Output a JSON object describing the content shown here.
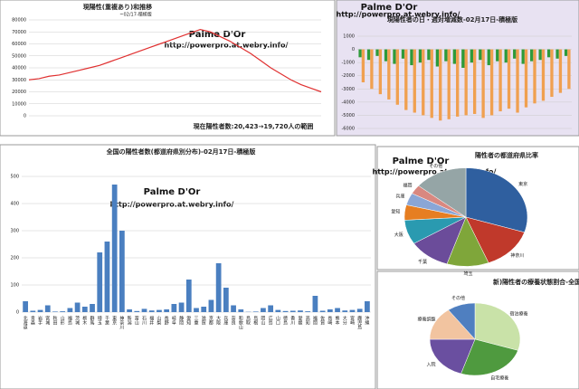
{
  "chart_data": [
    {
      "type": "line",
      "title": "現陽性(重複あり)和推移",
      "subtitle": "~02/17-積極版",
      "annotations": [
        "Palme D'Or",
        "http://powerpro.at.webry.info/",
        "現在陽性者数:20,423→19,720人の範囲"
      ],
      "color": "#e03030",
      "values": [
        30000,
        31000,
        33000,
        34000,
        36000,
        38000,
        40000,
        42000,
        45000,
        48000,
        51000,
        54000,
        57000,
        60000,
        63000,
        66000,
        69000,
        72000,
        70000,
        66000,
        62000,
        57000,
        52000,
        46000,
        40000,
        35000,
        30000,
        26000,
        23000,
        20000
      ],
      "ylim": [
        0,
        80000
      ],
      "yticks": [
        0,
        10000,
        20000,
        30000,
        40000,
        50000,
        60000,
        70000,
        80000
      ],
      "grid": true
    },
    {
      "type": "bar",
      "title": "現陽性者の日・週対増減数-02月17日-積極版",
      "annotations": [
        "Palme D'Or",
        "http://powerpro.at.webry.info/"
      ],
      "series": [
        {
          "color": "#2e9a3a",
          "values": [
            -600,
            -800,
            -500,
            -900,
            -1100,
            -700,
            -1200,
            -1000,
            -800,
            -1300,
            -900,
            -1100,
            -1400,
            -1000,
            -800,
            -1200,
            -900,
            -1000,
            -700,
            -1100,
            -900,
            -800,
            -600,
            -700,
            -500
          ]
        },
        {
          "color": "#f0a050",
          "values": [
            -2500,
            -3000,
            -3400,
            -3800,
            -4200,
            -4600,
            -4800,
            -5000,
            -5200,
            -5400,
            -5300,
            -5100,
            -5000,
            -4900,
            -5200,
            -5000,
            -4700,
            -4500,
            -4800,
            -4400,
            -4100,
            -3900,
            -3600,
            -3300,
            -3000
          ]
        }
      ],
      "ylim": [
        -6000,
        1000
      ],
      "yticks": [
        -6000,
        -5000,
        -4000,
        -3000,
        -2000,
        -1000,
        0,
        1000
      ],
      "grid": true,
      "background": "#e8e2f2"
    },
    {
      "type": "bar",
      "title": "全国の陽性者数(都道府県別分布)-02月17日-積極版",
      "annotations": [
        "Palme D'Or",
        "http://powerpro.at.webry.info/"
      ],
      "categories": [
        "北海道",
        "青森",
        "岩手",
        "宮城",
        "秋田",
        "山形",
        "福島",
        "茨城",
        "栃木",
        "群馬",
        "埼玉",
        "千葉",
        "東京",
        "神奈川",
        "新潟",
        "富山",
        "石川",
        "福井",
        "山梨",
        "長野",
        "岐阜",
        "静岡",
        "愛知",
        "三重",
        "滋賀",
        "京都",
        "大阪",
        "兵庫",
        "奈良",
        "和歌山",
        "鳥取",
        "島根",
        "岡山",
        "広島",
        "山口",
        "徳島",
        "香川",
        "愛媛",
        "高知",
        "福岡",
        "佐賀",
        "長崎",
        "熊本",
        "大分",
        "宮崎",
        "鹿児島",
        "沖縄"
      ],
      "color": "#4a7fc0",
      "values": [
        40,
        5,
        8,
        25,
        2,
        3,
        15,
        35,
        20,
        30,
        220,
        260,
        470,
        300,
        10,
        4,
        12,
        6,
        8,
        10,
        30,
        35,
        120,
        15,
        20,
        45,
        180,
        90,
        25,
        10,
        1,
        2,
        15,
        25,
        8,
        4,
        5,
        6,
        3,
        60,
        5,
        10,
        15,
        6,
        8,
        12,
        40
      ],
      "ylim": [
        0,
        500
      ],
      "yticks": [
        0,
        100,
        200,
        300,
        400,
        500
      ],
      "grid": true
    },
    {
      "type": "pie",
      "title": "陽性者の都道府県比率",
      "annotations": [
        "Palme D'Or",
        "http://powerpro.at.webry.info/"
      ],
      "categories": [
        "東京",
        "神奈川",
        "埼玉",
        "千葉",
        "大阪",
        "愛知",
        "兵庫",
        "福岡",
        "その他"
      ],
      "values": [
        30,
        14,
        11,
        11,
        8,
        5,
        4,
        3,
        14
      ],
      "colors": [
        "#2f5f9f",
        "#c0392b",
        "#7fa63a",
        "#6b4c9a",
        "#2a9ab0",
        "#e67e22",
        "#8aa6d6",
        "#d98880",
        "#95a5a6"
      ]
    },
    {
      "type": "pie",
      "title": "新)陽性者の療養状態割合-全国-",
      "categories": [
        "宿泊療養",
        "自宅療養",
        "入院",
        "療養調整",
        "その他"
      ],
      "values": [
        30,
        25,
        20,
        15,
        10
      ],
      "colors": [
        "#c9e2a8",
        "#4f9a3f",
        "#6a4fa0",
        "#f2c4a0",
        "#4f7fc0"
      ]
    }
  ]
}
